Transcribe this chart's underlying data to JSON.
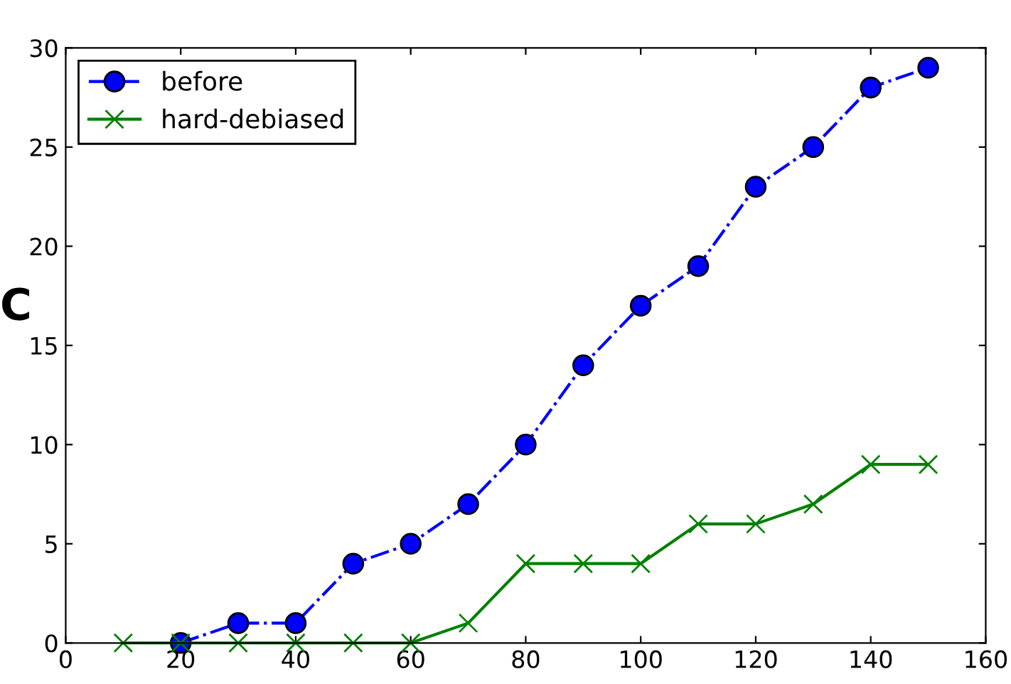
{
  "chart_data": {
    "type": "line",
    "annotations": [
      "C"
    ],
    "series": [
      {
        "name": "before",
        "color": "#0000ff",
        "x": [
          20,
          30,
          40,
          50,
          60,
          70,
          80,
          90,
          100,
          110,
          120,
          130,
          140,
          150
        ],
        "values": [
          0,
          1,
          1,
          4,
          5,
          7,
          10,
          14,
          17,
          19,
          23,
          25,
          28,
          29
        ],
        "marker": "circle",
        "line_style": "dashdot"
      },
      {
        "name": "hard-debiased",
        "color": "#008000",
        "x": [
          10,
          20,
          30,
          40,
          50,
          60,
          70,
          80,
          90,
          100,
          110,
          120,
          130,
          140,
          150
        ],
        "values": [
          0,
          0,
          0,
          0,
          0,
          0,
          1,
          4,
          4,
          4,
          6,
          6,
          7,
          9,
          9
        ],
        "marker": "cross",
        "line_style": "solid"
      }
    ],
    "xlim": [
      0,
      160
    ],
    "xticks": [
      0,
      20,
      40,
      60,
      80,
      100,
      120,
      140,
      160
    ],
    "ylim": [
      0,
      30
    ],
    "yticks": [
      0,
      5,
      10,
      15,
      20,
      25,
      30
    ],
    "grid": false,
    "legend": "top left"
  }
}
